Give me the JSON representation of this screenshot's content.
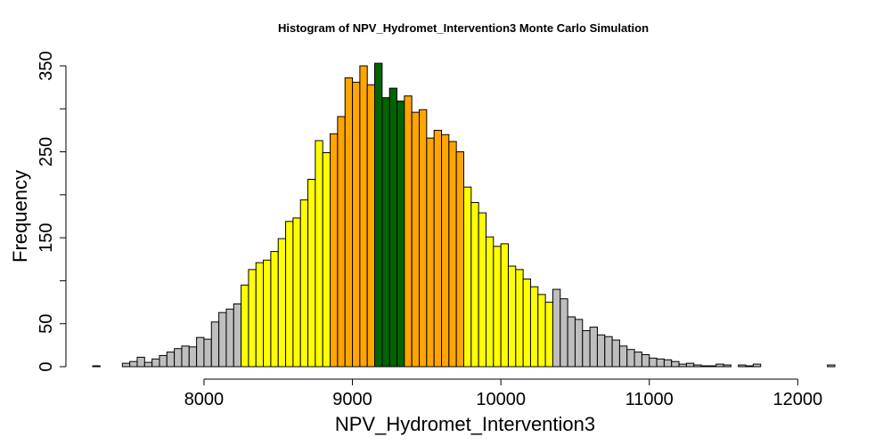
{
  "chart_data": {
    "type": "bar",
    "title": "Histogram of  NPV_Hydromet_Intervention3  Monte Carlo Simulation",
    "xlabel": "NPV_Hydromet_Intervention3",
    "ylabel": "Frequency",
    "xlim": [
      7250,
      12250
    ],
    "ylim": [
      0,
      350
    ],
    "x_ticks": [
      8000,
      9000,
      10000,
      11000,
      12000
    ],
    "y_ticks": [
      0,
      50,
      150,
      250,
      350
    ],
    "bin_width": 50,
    "bins_start": [
      7250,
      7300,
      7350,
      7400,
      7450,
      7500,
      7550,
      7600,
      7650,
      7700,
      7750,
      7800,
      7850,
      7900,
      7950,
      8000,
      8050,
      8100,
      8150,
      8200,
      8250,
      8300,
      8350,
      8400,
      8450,
      8500,
      8550,
      8600,
      8650,
      8700,
      8750,
      8800,
      8850,
      8900,
      8950,
      9000,
      9050,
      9100,
      9150,
      9200,
      9250,
      9300,
      9350,
      9400,
      9450,
      9500,
      9550,
      9600,
      9650,
      9700,
      9750,
      9800,
      9850,
      9900,
      9950,
      10000,
      10050,
      10100,
      10150,
      10200,
      10250,
      10300,
      10350,
      10400,
      10450,
      10500,
      10550,
      10600,
      10650,
      10700,
      10750,
      10800,
      10850,
      10900,
      10950,
      11000,
      11050,
      11100,
      11150,
      11200,
      11250,
      11300,
      11350,
      11400,
      11450,
      11500,
      11550,
      11600,
      11650,
      11700,
      11750,
      11800,
      11850,
      11900,
      11950,
      12000,
      12050,
      12100,
      12150,
      12200
    ],
    "values": [
      1,
      0,
      0,
      0,
      4,
      6,
      11,
      5,
      9,
      13,
      17,
      21,
      24,
      23,
      34,
      32,
      52,
      63,
      67,
      73,
      95,
      113,
      121,
      124,
      134,
      149,
      169,
      173,
      194,
      218,
      263,
      249,
      271,
      291,
      336,
      331,
      350,
      328,
      353,
      313,
      324,
      309,
      315,
      296,
      299,
      266,
      275,
      270,
      262,
      250,
      209,
      191,
      179,
      151,
      140,
      143,
      117,
      113,
      102,
      93,
      84,
      75,
      90,
      79,
      58,
      55,
      42,
      46,
      37,
      35,
      31,
      24,
      20,
      17,
      14,
      10,
      9,
      8,
      6,
      3,
      4,
      2,
      1,
      1,
      3,
      2,
      0,
      2,
      1,
      3,
      0,
      0,
      0,
      0,
      0,
      0,
      0,
      0,
      0,
      2
    ],
    "colors": [
      "#BEBEBE",
      "#BEBEBE",
      "#BEBEBE",
      "#BEBEBE",
      "#BEBEBE",
      "#BEBEBE",
      "#BEBEBE",
      "#BEBEBE",
      "#BEBEBE",
      "#BEBEBE",
      "#BEBEBE",
      "#BEBEBE",
      "#BEBEBE",
      "#BEBEBE",
      "#BEBEBE",
      "#BEBEBE",
      "#BEBEBE",
      "#BEBEBE",
      "#BEBEBE",
      "#BEBEBE",
      "#FFFF00",
      "#FFFF00",
      "#FFFF00",
      "#FFFF00",
      "#FFFF00",
      "#FFFF00",
      "#FFFF00",
      "#FFFF00",
      "#FFFF00",
      "#FFFF00",
      "#FFFF00",
      "#FFFF00",
      "#FFA500",
      "#FFA500",
      "#FFA500",
      "#FFA500",
      "#FFA500",
      "#FFA500",
      "#006400",
      "#006400",
      "#006400",
      "#006400",
      "#FFA500",
      "#FFA500",
      "#FFA500",
      "#FFA500",
      "#FFA500",
      "#FFA500",
      "#FFA500",
      "#FFA500",
      "#FFFF00",
      "#FFFF00",
      "#FFFF00",
      "#FFFF00",
      "#FFFF00",
      "#FFFF00",
      "#FFFF00",
      "#FFFF00",
      "#FFFF00",
      "#FFFF00",
      "#FFFF00",
      "#FFFF00",
      "#BEBEBE",
      "#BEBEBE",
      "#BEBEBE",
      "#BEBEBE",
      "#BEBEBE",
      "#BEBEBE",
      "#BEBEBE",
      "#BEBEBE",
      "#BEBEBE",
      "#BEBEBE",
      "#BEBEBE",
      "#BEBEBE",
      "#BEBEBE",
      "#BEBEBE",
      "#BEBEBE",
      "#BEBEBE",
      "#BEBEBE",
      "#BEBEBE",
      "#BEBEBE",
      "#BEBEBE",
      "#BEBEBE",
      "#BEBEBE",
      "#BEBEBE",
      "#BEBEBE",
      "#BEBEBE",
      "#BEBEBE",
      "#BEBEBE",
      "#BEBEBE",
      "#BEBEBE",
      "#BEBEBE",
      "#BEBEBE",
      "#BEBEBE",
      "#BEBEBE",
      "#BEBEBE",
      "#BEBEBE",
      "#BEBEBE",
      "#BEBEBE",
      "#BEBEBE"
    ],
    "grid": false,
    "legend": "none"
  }
}
